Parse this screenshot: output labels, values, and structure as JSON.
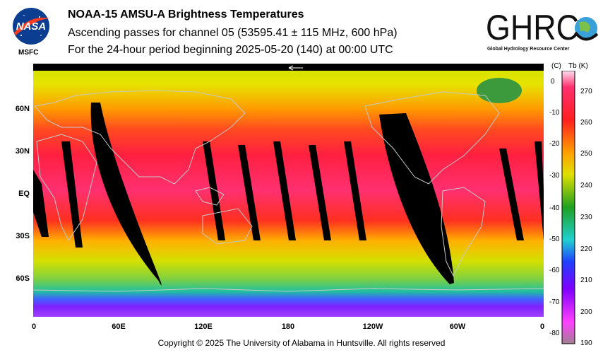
{
  "header": {
    "title": "NOAA-15 AMSU-A Brightness Temperatures",
    "subtitle": "Ascending passes for channel 05 (53595.41 ± 115 MHz, 600 hPa)",
    "period": "For the 24-hour period beginning 2025-05-20 (140) at 00:00 UTC"
  },
  "logos": {
    "nasa_text": "NASA",
    "msfc_text": "MSFC",
    "ghrc_text": "GHRC",
    "ghrc_subtext": "Global Hydrology Resource Center"
  },
  "map": {
    "lat_labels": [
      "60N",
      "30N",
      "EQ",
      "30S",
      "60S"
    ],
    "lon_labels": [
      "0",
      "60E",
      "120E",
      "180",
      "120W",
      "60W",
      "0"
    ],
    "colors": {
      "missing": "#000000",
      "coast": "#c8c8c8"
    }
  },
  "colorbar": {
    "unit_c": "(C)",
    "unit_k": "Tb  (K)",
    "celsius_ticks": [
      "0",
      "-10",
      "-20",
      "-30",
      "-40",
      "-50",
      "-60",
      "-70",
      "-80"
    ],
    "kelvin_ticks": [
      "270",
      "260",
      "250",
      "240",
      "230",
      "220",
      "210",
      "200",
      "190"
    ]
  },
  "footer": {
    "copyright": "Copyright © 2025 The University of Alabama in Huntsville.  All rights reserved"
  }
}
